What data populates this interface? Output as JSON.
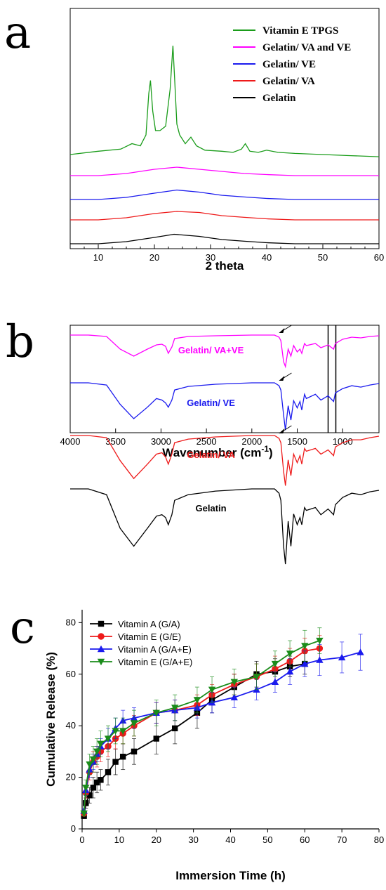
{
  "panels": {
    "a": {
      "letter": "a"
    },
    "b": {
      "letter": "b"
    },
    "c": {
      "letter": "c"
    }
  },
  "chart_data": [
    {
      "type": "line",
      "panel": "a",
      "xlabel": "2 theta",
      "ylabel": "",
      "xlim": [
        5,
        60
      ],
      "xticks": [
        10,
        20,
        30,
        40,
        50,
        60
      ],
      "legend_position": "top-right",
      "series": [
        {
          "name": "Vitamin E TPGS",
          "color": "#1a9c1a",
          "x": [
            5,
            10,
            14,
            16,
            17.5,
            18.5,
            19,
            19.3,
            19.7,
            20.2,
            21,
            22,
            22.8,
            23.3,
            23.6,
            24,
            24.5,
            25.5,
            26.5,
            27.5,
            29,
            32,
            34,
            35.5,
            36.2,
            37,
            38.5,
            40,
            42,
            45,
            50,
            55,
            60
          ],
          "y": [
            0,
            1.5,
            2.5,
            5,
            4,
            9,
            28,
            34,
            20,
            11,
            11,
            13,
            30,
            50,
            35,
            14,
            9,
            5,
            8,
            4,
            2,
            1.5,
            1,
            2.5,
            5,
            1.5,
            1,
            2,
            1,
            0.5,
            0,
            -0.5,
            -1
          ]
        },
        {
          "name": "Gelatin/ VA and VE",
          "color": "#ff00ff",
          "x": [
            5,
            10,
            15,
            20,
            24,
            28,
            32,
            36,
            40,
            45,
            50,
            55,
            60
          ],
          "y": [
            0,
            0,
            1,
            3,
            4,
            3,
            2,
            1,
            0.5,
            0,
            0,
            0,
            0
          ]
        },
        {
          "name": "Gelatin/ VE",
          "color": "#1a1aee",
          "x": [
            5,
            10,
            15,
            20,
            24,
            28,
            32,
            36,
            40,
            45,
            50,
            55,
            60
          ],
          "y": [
            0,
            0,
            1,
            3,
            4.5,
            3.5,
            2,
            1.2,
            0.5,
            0,
            0,
            0,
            0
          ]
        },
        {
          "name": "Gelatin/ VA",
          "color": "#ee1a1a",
          "x": [
            5,
            10,
            15,
            20,
            24,
            28,
            32,
            36,
            40,
            45,
            50,
            55,
            60
          ],
          "y": [
            0,
            0,
            1,
            3,
            4,
            3.5,
            2,
            1.2,
            0.5,
            0,
            0,
            0,
            0
          ]
        },
        {
          "name": "Gelatin",
          "color": "#000000",
          "x": [
            5,
            10,
            15,
            20,
            23.5,
            28,
            32,
            36,
            40,
            45,
            50,
            55,
            60
          ],
          "y": [
            0,
            0,
            1,
            3,
            4.5,
            3.5,
            2,
            1.2,
            0.5,
            0,
            0,
            0,
            0
          ]
        }
      ]
    },
    {
      "type": "line",
      "panel": "b",
      "xlabel": "Wavenumber (cm",
      "xlabel_superscript": "-1",
      "xlabel_close": ")",
      "ylabel": "",
      "xlim": [
        4000,
        600
      ],
      "xticks": [
        4000,
        3500,
        3000,
        2500,
        2000,
        1500,
        1000
      ],
      "reference_lines": [
        1160,
        1075
      ],
      "series": [
        {
          "name": "Gelatin/ VA+VE",
          "label": "Gelatin/ VA+VE",
          "color": "#ff00ff",
          "arrow": true,
          "label_at": 2450,
          "x": [
            4000,
            3800,
            3600,
            3450,
            3300,
            3150,
            3050,
            2990,
            2950,
            2920,
            2880,
            2850,
            2700,
            2400,
            2000,
            1750,
            1700,
            1680,
            1650,
            1630,
            1600,
            1570,
            1540,
            1500,
            1470,
            1450,
            1420,
            1400,
            1300,
            1240,
            1160,
            1100,
            1080,
            1000,
            900,
            800,
            700,
            600
          ],
          "y": [
            0,
            0,
            -2,
            -20,
            -30,
            -20,
            -14,
            -13,
            -16,
            -26,
            -17,
            -5,
            -2,
            -1,
            0,
            0,
            -3,
            -8,
            -38,
            -45,
            -20,
            -30,
            -15,
            -24,
            -20,
            -26,
            -12,
            -15,
            -12,
            -18,
            -14,
            -20,
            -12,
            -6,
            -3,
            -4,
            -2,
            -1
          ]
        },
        {
          "name": "Gelatin/ VE",
          "label": "Gelatin/ VE",
          "color": "#1a1aee",
          "arrow": true,
          "label_at": 2450,
          "x": [
            4000,
            3800,
            3600,
            3450,
            3300,
            3150,
            3050,
            2990,
            2950,
            2920,
            2880,
            2850,
            2700,
            2400,
            2000,
            1750,
            1700,
            1680,
            1650,
            1630,
            1600,
            1570,
            1540,
            1500,
            1470,
            1450,
            1420,
            1400,
            1300,
            1240,
            1160,
            1100,
            1080,
            1000,
            900,
            800,
            700,
            600
          ],
          "y": [
            0,
            0,
            -3,
            -30,
            -50,
            -34,
            -22,
            -24,
            -28,
            -34,
            -24,
            -10,
            -5,
            -2,
            0,
            0,
            -4,
            -10,
            -45,
            -66,
            -32,
            -52,
            -25,
            -35,
            -26,
            -38,
            -16,
            -22,
            -16,
            -24,
            -18,
            -26,
            -14,
            -8,
            -4,
            -6,
            -3,
            -1
          ]
        },
        {
          "name": "Gelatin/ VA",
          "label": "Gelatin/ VA",
          "color": "#ee1a1a",
          "arrow": true,
          "label_at": 2450,
          "x": [
            4000,
            3800,
            3600,
            3450,
            3300,
            3150,
            3050,
            2990,
            2950,
            2920,
            2880,
            2850,
            2700,
            2400,
            2000,
            1750,
            1700,
            1680,
            1650,
            1630,
            1600,
            1570,
            1540,
            1500,
            1470,
            1450,
            1420,
            1400,
            1300,
            1240,
            1160,
            1100,
            1080,
            1000,
            900,
            800,
            700,
            600
          ],
          "y": [
            0,
            0,
            -3,
            -35,
            -60,
            -40,
            -26,
            -24,
            -30,
            -40,
            -26,
            -10,
            -5,
            -2,
            0,
            0,
            -4,
            -10,
            -50,
            -70,
            -34,
            -56,
            -26,
            -38,
            -28,
            -40,
            -18,
            -22,
            -18,
            -26,
            -20,
            -28,
            -16,
            -10,
            -6,
            -6,
            -3,
            -1
          ]
        },
        {
          "name": "Gelatin",
          "label": "Gelatin",
          "color": "#000000",
          "arrow": false,
          "label_at": 2450,
          "x": [
            4000,
            3800,
            3600,
            3450,
            3300,
            3150,
            3050,
            2990,
            2950,
            2920,
            2880,
            2850,
            2700,
            2400,
            2000,
            1750,
            1700,
            1680,
            1650,
            1630,
            1600,
            1570,
            1540,
            1500,
            1470,
            1450,
            1420,
            1400,
            1300,
            1240,
            1160,
            1100,
            1080,
            1000,
            900,
            800,
            700,
            600
          ],
          "y": [
            0,
            0,
            -8,
            -55,
            -80,
            -55,
            -38,
            -36,
            -40,
            -50,
            -36,
            -16,
            -8,
            -3,
            0,
            0,
            -6,
            -16,
            -80,
            -105,
            -45,
            -80,
            -35,
            -50,
            -40,
            -50,
            -26,
            -30,
            -26,
            -36,
            -28,
            -36,
            -22,
            -12,
            -6,
            -8,
            -4,
            -2
          ]
        }
      ]
    },
    {
      "type": "line",
      "panel": "c",
      "xlabel": "Immersion Time (h)",
      "ylabel": "Cumulative Release (%)",
      "xlim": [
        0,
        80
      ],
      "ylim": [
        0,
        85
      ],
      "xticks": [
        0,
        10,
        20,
        30,
        40,
        50,
        60,
        70,
        80
      ],
      "yticks": [
        0,
        20,
        40,
        60,
        80
      ],
      "legend_position": "top-left",
      "series": [
        {
          "name": "Vitamin A (G/A)",
          "color": "#000000",
          "marker": "square",
          "x": [
            0.5,
            1,
            2,
            3,
            4,
            5,
            7,
            9,
            11,
            14,
            20,
            25,
            31,
            35,
            41,
            47,
            52,
            56,
            60
          ],
          "y": [
            5,
            10,
            13,
            16,
            18,
            19,
            22,
            26,
            28,
            30,
            35,
            39,
            45,
            50,
            55,
            60,
            61,
            63,
            64
          ],
          "err": [
            1,
            2,
            3,
            4,
            4,
            4,
            5,
            5,
            5,
            5,
            6,
            6,
            6,
            5,
            5,
            5,
            5,
            4,
            4
          ]
        },
        {
          "name": "Vitamin E (G/E)",
          "color": "#ee1a1a",
          "marker": "circle",
          "x": [
            0.5,
            1,
            2,
            3,
            4,
            5,
            7,
            9,
            11,
            14,
            20,
            25,
            31,
            35,
            41,
            47,
            52,
            56,
            60,
            64
          ],
          "y": [
            6,
            14,
            22,
            26,
            28,
            30,
            32,
            35,
            37,
            40,
            45,
            46,
            48,
            52,
            56,
            59,
            62,
            65,
            69,
            70
          ],
          "err": [
            1,
            2,
            3,
            4,
            4,
            4,
            4,
            4,
            4,
            4,
            4,
            4,
            4,
            4,
            4,
            5,
            5,
            5,
            5,
            5
          ]
        },
        {
          "name": "Vitamin A (G/A+E)",
          "color": "#1a1aee",
          "marker": "triangle-up",
          "x": [
            0.5,
            1,
            2,
            3,
            4,
            5,
            7,
            9,
            11,
            14,
            20,
            25,
            31,
            35,
            41,
            47,
            52,
            56,
            60,
            64,
            70,
            75
          ],
          "y": [
            7,
            15,
            23,
            26,
            29,
            32,
            35,
            39,
            42,
            43,
            45,
            46,
            47,
            49,
            51,
            54,
            57,
            61,
            64,
            65.5,
            66.5,
            68.5
          ],
          "err": [
            1,
            2,
            3,
            3,
            3,
            3,
            4,
            4,
            4,
            4,
            4,
            4,
            4,
            4,
            4,
            4,
            4,
            5,
            5,
            6,
            6,
            7
          ]
        },
        {
          "name": "Vitamin E (G/A+E)",
          "color": "#1a8c1a",
          "marker": "triangle-down",
          "x": [
            0.5,
            1,
            2,
            3,
            4,
            5,
            7,
            9,
            11,
            14,
            20,
            25,
            31,
            35,
            41,
            47,
            52,
            56,
            60,
            64
          ],
          "y": [
            6,
            16,
            25,
            27,
            30,
            33,
            35,
            38,
            38,
            41,
            45,
            47,
            50,
            54,
            57,
            59,
            64,
            68,
            71,
            73
          ],
          "err": [
            1,
            3,
            4,
            5,
            5,
            5,
            5,
            5,
            5,
            5,
            5,
            5,
            5,
            5,
            5,
            5,
            5,
            5,
            6,
            5
          ]
        }
      ]
    }
  ]
}
